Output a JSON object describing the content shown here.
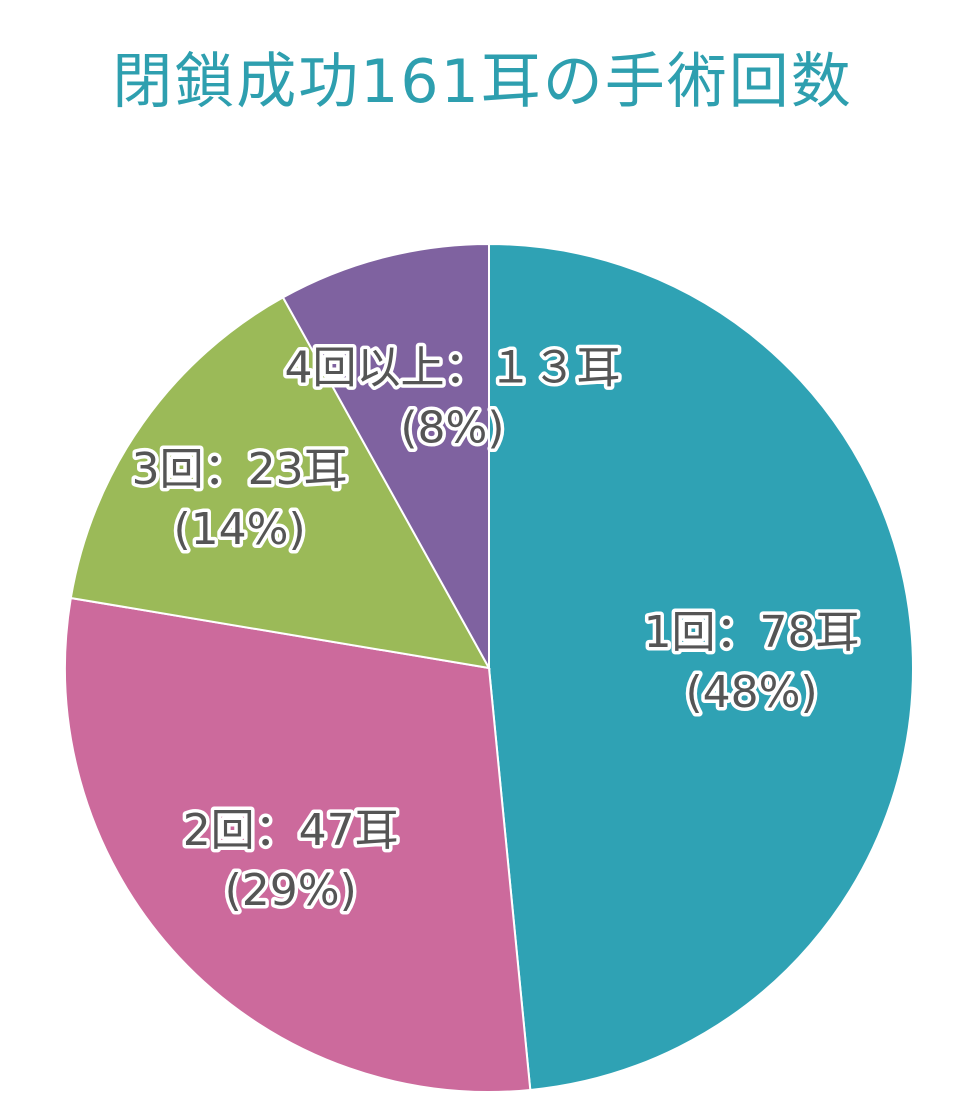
{
  "chart_data": {
    "type": "pie",
    "title": "閉鎖成功161耳の手術回数",
    "title_color": "#2E9FAF",
    "start_angle_deg": 0,
    "direction": "clockwise",
    "slices": [
      {
        "label": "1回：78耳",
        "percent_label": "(48%)",
        "value": 78,
        "color": "#2FA2B4"
      },
      {
        "label": "2回：47耳",
        "percent_label": "(29%)",
        "value": 47,
        "color": "#CC6A9C"
      },
      {
        "label": "3回：23耳",
        "percent_label": "(14%)",
        "value": 23,
        "color": "#9BBA58"
      },
      {
        "label": "4回以上：１３耳",
        "percent_label": "(8%)",
        "value": 13,
        "color": "#7F62A0"
      }
    ]
  }
}
